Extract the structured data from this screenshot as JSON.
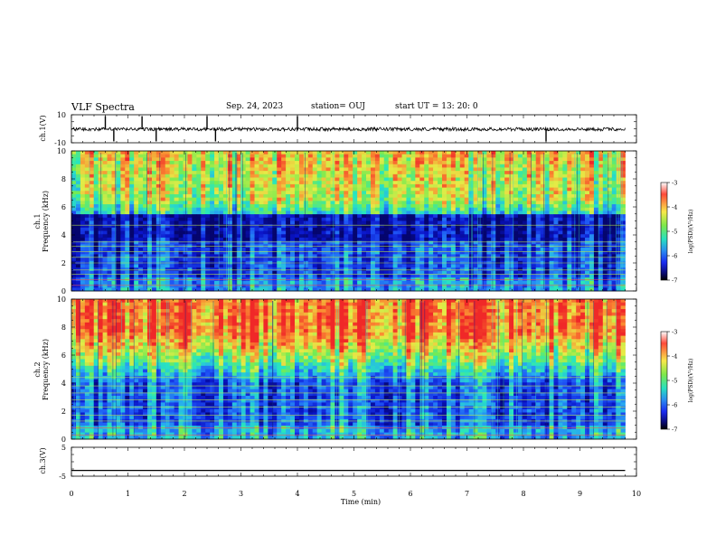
{
  "header": {
    "title": "VLF Spectra",
    "date": "Sep. 24, 2023",
    "station": "station= OUJ",
    "start": "start  UT  =   13: 20: 0"
  },
  "colorbar": {
    "label": "log(PSD)(V²/Hz)",
    "ticks": [
      "-3",
      "-4",
      "-5",
      "-6",
      "-7"
    ],
    "colors": [
      "#ffffff",
      "#ff4a3a",
      "#f8e84a",
      "#7ee84a",
      "#28e0c0",
      "#2a8cf0",
      "#1a2af0",
      "#0a0a70",
      "#000000"
    ]
  },
  "chart_data": [
    {
      "type": "line",
      "title": "",
      "ylabel": "ch.1(V)",
      "xlabel": "",
      "xlim": [
        0,
        10
      ],
      "ylim": [
        -10,
        10
      ],
      "y_tick_labels": [
        "10",
        "-10"
      ],
      "series": [
        {
          "x_range": [
            0,
            9.8
          ],
          "baseline": -0.3,
          "noise_amplitude": 1.2,
          "spikes": [
            0.6,
            0.75,
            1.25,
            1.5,
            2.4,
            2.55,
            4.0,
            8.4
          ]
        }
      ]
    },
    {
      "type": "heatmap",
      "ylabel": "ch.1\nFrequency (kHz)",
      "xlim": [
        0,
        10
      ],
      "ylim": [
        0,
        10
      ],
      "x_data_extent": [
        0,
        9.8
      ],
      "y_tick_labels": [
        "0",
        "2",
        "4",
        "6",
        "8",
        "10"
      ],
      "color_scale": "log(PSD)(V²/Hz)",
      "clim": [
        -7,
        -3
      ],
      "profile_description": "green/yellow above ~6 kHz, dark blue 3.5-6 kHz, blue/cyan with horizontal lines below 3.5 kHz"
    },
    {
      "type": "heatmap",
      "ylabel": "ch.2\nFrequency (kHz)",
      "xlim": [
        0,
        10
      ],
      "ylim": [
        0,
        10
      ],
      "x_data_extent": [
        0,
        9.8
      ],
      "y_tick_labels": [
        "0",
        "2",
        "4",
        "6",
        "8",
        "10"
      ],
      "color_scale": "log(PSD)(V²/Hz)",
      "clim": [
        -7,
        -3
      ],
      "profile_description": "red above ~7 kHz, yellow/green 5-7 kHz, blue/cyan with horizontal lines below 5 kHz"
    },
    {
      "type": "line",
      "ylabel": "ch.3(V)",
      "xlabel": "Time (min)",
      "xlim": [
        0,
        10
      ],
      "ylim": [
        -5,
        5
      ],
      "y_tick_labels": [
        "5",
        "-5"
      ],
      "x_tick_labels": [
        "0",
        "1",
        "2",
        "3",
        "4",
        "5",
        "6",
        "7",
        "8",
        "9",
        "10"
      ],
      "series": [
        {
          "x_range": [
            0,
            9.8
          ],
          "values": [
            -3,
            -3
          ]
        }
      ]
    }
  ]
}
